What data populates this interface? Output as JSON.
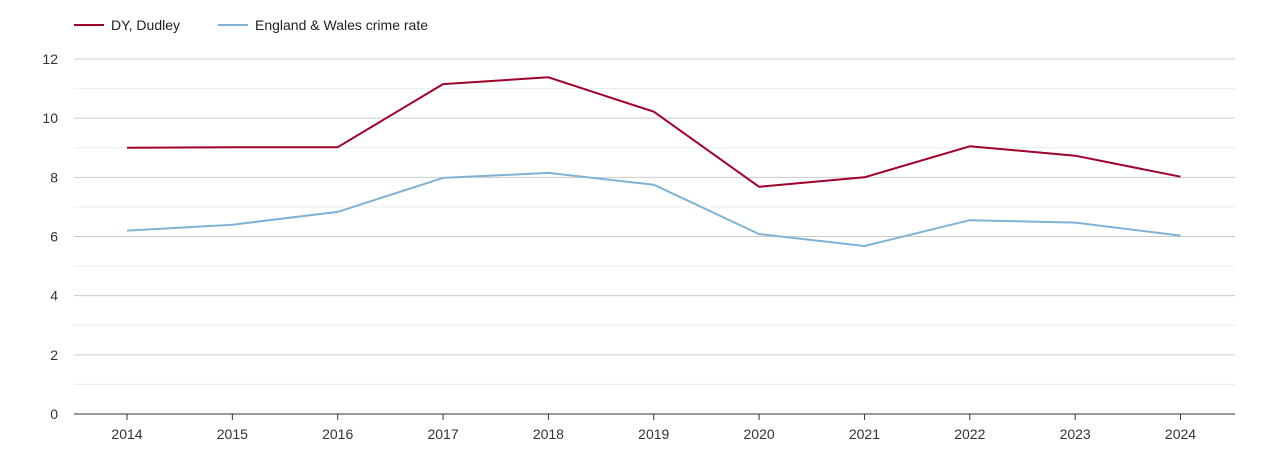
{
  "chart_data": {
    "type": "line",
    "title": "",
    "xlabel": "",
    "ylabel": "",
    "categories": [
      "2014",
      "2015",
      "2016",
      "2017",
      "2018",
      "2019",
      "2020",
      "2021",
      "2022",
      "2023",
      "2024"
    ],
    "ylim": [
      0,
      12
    ],
    "yticks": [
      0,
      2,
      4,
      6,
      8,
      10,
      12
    ],
    "grid": true,
    "legend_position": "top-left",
    "series": [
      {
        "name": "DY, Dudley",
        "color": "#a0002a",
        "values": [
          9.0,
          9.02,
          9.02,
          11.15,
          11.38,
          10.22,
          7.68,
          8.0,
          9.05,
          8.73,
          8.02
        ]
      },
      {
        "name": "England & Wales crime rate",
        "color": "#7fb2d4",
        "values": [
          6.2,
          6.4,
          6.83,
          7.98,
          8.15,
          7.75,
          6.08,
          5.68,
          6.55,
          6.47,
          6.03
        ]
      }
    ]
  }
}
